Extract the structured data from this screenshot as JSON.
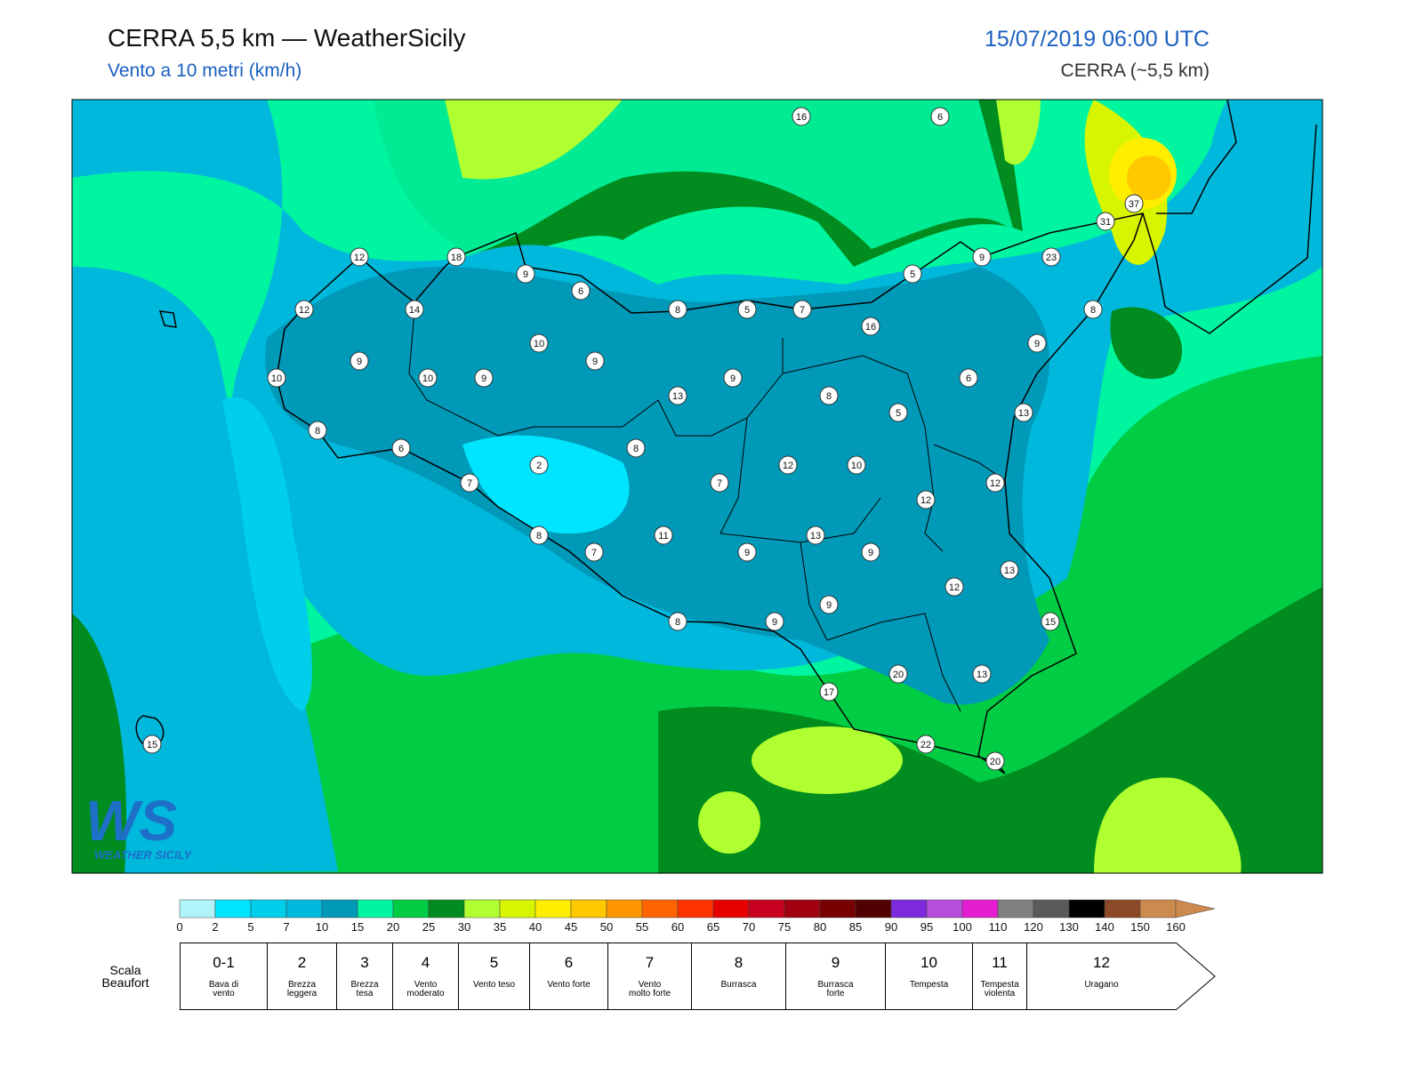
{
  "header": {
    "title": "CERRA 5,5 km — WeatherSicily",
    "subtitle": "Vento a 10 metri (km/h)",
    "datetime": "15/07/2019 06:00 UTC",
    "model": "CERRA (~5,5 km)"
  },
  "map": {
    "stations": [
      16,
      6,
      37,
      31,
      12,
      18,
      9,
      23,
      9,
      5,
      6,
      12,
      14,
      8,
      5,
      7,
      8,
      16,
      10,
      9,
      9,
      9,
      10,
      10,
      9,
      9,
      6,
      13,
      8,
      5,
      13,
      8,
      6,
      8,
      2,
      12,
      10,
      7,
      7,
      12,
      12,
      8,
      11,
      13,
      7,
      9,
      9,
      13,
      12,
      9,
      8,
      9,
      15,
      20,
      13,
      17,
      15,
      22,
      20
    ],
    "logo": {
      "mark": "WS",
      "text": "WEATHER SICILY"
    }
  },
  "colorbar": {
    "ticks": [
      0,
      2,
      5,
      7,
      10,
      15,
      20,
      25,
      30,
      35,
      40,
      45,
      50,
      55,
      60,
      65,
      70,
      75,
      80,
      85,
      90,
      95,
      100,
      110,
      120,
      130,
      140,
      150,
      160
    ],
    "colors": [
      "#b0f4fa",
      "#00e5ff",
      "#00cfec",
      "#00b8dc",
      "#0099b8",
      "#00f5a0",
      "#00cc44",
      "#008c1e",
      "#b0ff30",
      "#d8f500",
      "#ffee00",
      "#ffc800",
      "#ff9600",
      "#ff6400",
      "#ff3200",
      "#e60000",
      "#c80020",
      "#a00010",
      "#780000",
      "#500000",
      "#7d2adc",
      "#b450dc",
      "#e61ed2",
      "#808080",
      "#5a5a5a",
      "#000000",
      "#8c4a28",
      "#cd8a4e"
    ],
    "extend_color": "#cd8a4e"
  },
  "beaufort": {
    "title": "Scala Beaufort",
    "levels": [
      {
        "force": "0-1",
        "label": "Bava di vento"
      },
      {
        "force": 2,
        "label": "Brezza leggera"
      },
      {
        "force": 3,
        "label": "Brezza tesa"
      },
      {
        "force": 4,
        "label": "Vento moderato"
      },
      {
        "force": 5,
        "label": "Vento teso"
      },
      {
        "force": 6,
        "label": "Vento forte"
      },
      {
        "force": 7,
        "label": "Vento molto forte"
      },
      {
        "force": 8,
        "label": "Burrasca"
      },
      {
        "force": 9,
        "label": "Burrasca forte"
      },
      {
        "force": 10,
        "label": "Tempesta"
      },
      {
        "force": 11,
        "label": "Tempesta violenta"
      },
      {
        "force": 12,
        "label": "Uragano"
      }
    ]
  }
}
